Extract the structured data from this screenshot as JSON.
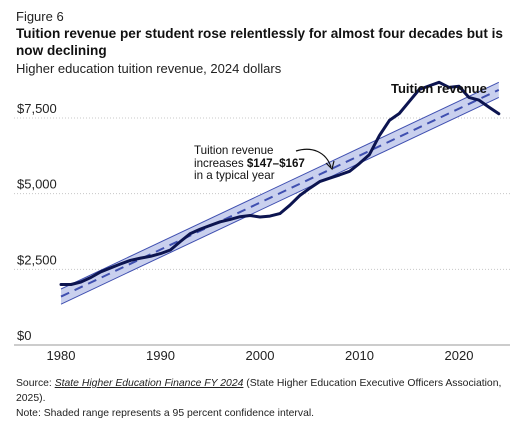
{
  "figure_label": "Figure 6",
  "title": "Tuition revenue per student rose relentlessly for almost four decades but is now declining",
  "subtitle": "Higher education tuition revenue, 2024 dollars",
  "series_label": "Tuition revenue",
  "annotation": {
    "line1": "Tuition revenue",
    "line2_prefix": "increases ",
    "line2_bold": "$147–$167",
    "line3": "in a typical year"
  },
  "footer": {
    "source_prefix": "Source: ",
    "source_title": "State Higher Education Finance FY 2024",
    "source_suffix": " (State Higher Education Executive Officers Association, 2025).",
    "note": "Note: Shaded range represents a 95 percent confidence interval."
  },
  "colors": {
    "line": "#0c1450",
    "trend": "#3f4fb0",
    "band_fill": "#c9d0ee",
    "band_edge": "#3f4fb0",
    "grid": "#c8c8c8"
  },
  "chart_data": {
    "type": "line",
    "x_ticks": [
      1980,
      1990,
      2000,
      2010,
      2020
    ],
    "y_ticks": [
      0,
      2500,
      5000,
      7500
    ],
    "y_tick_labels": [
      "$0",
      "$2,500",
      "$5,000",
      "$7,500"
    ],
    "xlim": [
      1979,
      2025
    ],
    "ylim": [
      0,
      8900
    ],
    "grid": true,
    "series": [
      {
        "name": "Tuition revenue",
        "x": [
          1980,
          1981,
          1982,
          1983,
          1984,
          1985,
          1986,
          1987,
          1988,
          1989,
          1990,
          1991,
          1992,
          1993,
          1994,
          1995,
          1996,
          1997,
          1998,
          1999,
          2000,
          2001,
          2002,
          2003,
          2004,
          2005,
          2006,
          2007,
          2008,
          2009,
          2010,
          2011,
          2012,
          2013,
          2014,
          2015,
          2016,
          2017,
          2018,
          2019,
          2020,
          2021,
          2022,
          2023,
          2024
        ],
        "y": [
          2000,
          2000,
          2080,
          2230,
          2420,
          2550,
          2680,
          2800,
          2870,
          2930,
          3020,
          3140,
          3420,
          3680,
          3830,
          3950,
          4070,
          4150,
          4240,
          4280,
          4230,
          4260,
          4340,
          4620,
          4940,
          5180,
          5400,
          5510,
          5620,
          5740,
          6000,
          6290,
          6920,
          7420,
          7650,
          8050,
          8440,
          8560,
          8680,
          8510,
          8550,
          8180,
          8090,
          7860,
          7640
        ]
      }
    ],
    "trend": {
      "x": [
        1980,
        2024
      ],
      "y": [
        1600,
        8430
      ],
      "ci_lower": [
        1350,
        8180
      ],
      "ci_upper": [
        1850,
        8680
      ]
    }
  }
}
